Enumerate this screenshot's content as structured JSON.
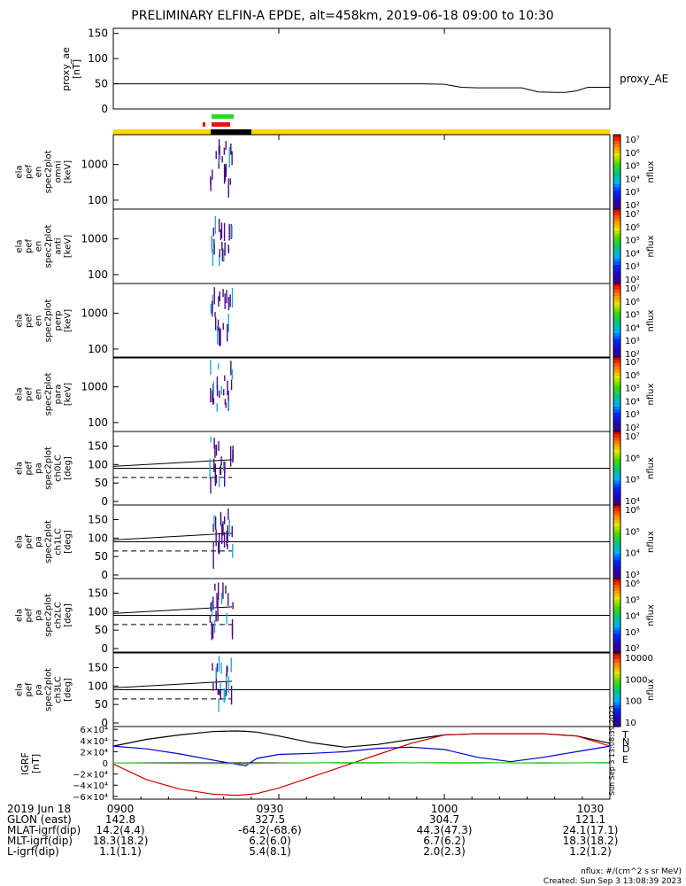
{
  "title": "PRELIMINARY ELFIN-A EPDE, alt=458km, 2019-06-18 09:00 to 10:30",
  "colors": {
    "status_yellow": "#ffd700",
    "status_black": "#000000",
    "bar_green": "#22dd22",
    "bar_red": "#ee1111",
    "north": "#cc0000",
    "east": "#22cc22",
    "down": "#0000cc",
    "total": "#000000"
  },
  "proxy_ae": {
    "ylabel_lines": [
      "proxy_ae",
      "[nT]"
    ],
    "ticks": [
      "150",
      "100",
      "50",
      "0"
    ],
    "legend": "proxy_AE",
    "chart_data": {
      "type": "line",
      "ylim": [
        0,
        160
      ],
      "x_min": [
        0,
        8,
        16,
        24,
        32,
        40,
        48,
        56,
        60,
        63,
        66,
        70,
        74,
        77,
        80,
        82,
        84,
        86,
        88,
        90
      ],
      "values": [
        50,
        50,
        50,
        50,
        50,
        50,
        50,
        50,
        49,
        43,
        42,
        42,
        42,
        34,
        33,
        33,
        36,
        43,
        43,
        43
      ]
    }
  },
  "spec_panels": [
    {
      "ylabel_lines": [
        "ela",
        "pef",
        "en",
        "spec2plot",
        "omni",
        "[keV]"
      ],
      "ticks": [
        "1000",
        "100"
      ],
      "cbar_ticks": [
        "10⁷",
        "10⁶",
        "10⁵",
        "10⁴",
        "10³",
        "10²"
      ],
      "cbar_label": "nflux"
    },
    {
      "ylabel_lines": [
        "ela",
        "pef",
        "en",
        "spec2plot",
        "anti",
        "[keV]"
      ],
      "ticks": [
        "1000",
        "100"
      ],
      "cbar_ticks": [
        "10⁷",
        "10⁶",
        "10⁵",
        "10⁴",
        "10³",
        "10²"
      ],
      "cbar_label": "nflux"
    },
    {
      "ylabel_lines": [
        "ela",
        "pef",
        "en",
        "spec2plot",
        "perp",
        "[keV]"
      ],
      "ticks": [
        "1000",
        "100"
      ],
      "cbar_ticks": [
        "10⁷",
        "10⁶",
        "10⁵",
        "10⁴",
        "10³",
        "10²"
      ],
      "cbar_label": "nflux"
    },
    {
      "ylabel_lines": [
        "ela",
        "pef",
        "en",
        "spec2plot",
        "para",
        "[keV]"
      ],
      "ticks": [
        "1000",
        "100"
      ],
      "cbar_ticks": [
        "10⁷",
        "10⁶",
        "10⁵",
        "10⁴",
        "10³",
        "10²"
      ],
      "cbar_label": "nflux"
    }
  ],
  "pa_panels": [
    {
      "ylabel_lines": [
        "ela",
        "pef",
        "pa",
        "spec2plot",
        "ch0LC",
        "[deg]"
      ],
      "ticks": [
        "150",
        "100",
        "50",
        "0"
      ],
      "cbar_ticks": [
        "10⁷",
        "10⁶",
        "10⁵",
        "10⁴"
      ],
      "cbar_label": "nflux"
    },
    {
      "ylabel_lines": [
        "ela",
        "pef",
        "pa",
        "spec2plot",
        "ch1LC",
        "[deg]"
      ],
      "ticks": [
        "150",
        "100",
        "50",
        "0"
      ],
      "cbar_ticks": [
        "10⁶",
        "10⁵",
        "10⁴",
        "10³"
      ],
      "cbar_label": "nflux"
    },
    {
      "ylabel_lines": [
        "ela",
        "pef",
        "pa",
        "spec2plot",
        "ch2LC",
        "[deg]"
      ],
      "ticks": [
        "150",
        "100",
        "50",
        "0"
      ],
      "cbar_ticks": [
        "10⁶",
        "10⁵",
        "10⁴",
        "10³",
        "10²"
      ],
      "cbar_label": "nflux"
    },
    {
      "ylabel_lines": [
        "ela",
        "pef",
        "pa",
        "spec2plot",
        "ch3LC",
        "[deg]"
      ],
      "ticks": [
        "150",
        "100",
        "50",
        "0"
      ],
      "cbar_ticks": [
        "10000",
        "1000",
        "100",
        "10"
      ],
      "cbar_label": "nflux"
    }
  ],
  "igrf": {
    "ylabel_lines": [
      "IGRF",
      "[nT]"
    ],
    "ticks": [
      "6×10⁴",
      "4×10⁴",
      "2×10⁴",
      "0",
      "−2×10⁴",
      "−4×10⁴",
      "−6×10⁴"
    ],
    "legend": [
      "T",
      "N",
      "D",
      "E"
    ],
    "side_text": "Sun Sep  3 13:08:39 2023",
    "chart_data": {
      "type": "line",
      "ylim": [
        -65000,
        65000
      ],
      "x_min": [
        0,
        6,
        12,
        18,
        22,
        24,
        26,
        30,
        36,
        42,
        48,
        54,
        60,
        66,
        72,
        78,
        84,
        90
      ],
      "series": [
        {
          "name": "T",
          "values": [
            30000,
            42000,
            50000,
            56000,
            57000,
            56500,
            55000,
            48000,
            36000,
            28000,
            33000,
            42000,
            50000,
            52000,
            52000,
            52000,
            48000,
            35000
          ]
        },
        {
          "name": "N",
          "values": [
            -2000,
            -30000,
            -47000,
            -56000,
            -58000,
            -57000,
            -55000,
            -45000,
            -25000,
            -5000,
            15000,
            35000,
            50000,
            52000,
            52000,
            52000,
            48000,
            30000
          ]
        },
        {
          "name": "D",
          "values": [
            30000,
            25000,
            16000,
            5000,
            -2000,
            -5000,
            8000,
            15000,
            17000,
            20000,
            26000,
            28000,
            24000,
            10000,
            2000,
            10000,
            20000,
            30000
          ]
        },
        {
          "name": "E",
          "values": [
            0,
            -500,
            -1000,
            -1000,
            -1500,
            -1500,
            -1000,
            -500,
            0,
            500,
            500,
            0,
            500,
            500,
            0,
            -500,
            0,
            500
          ]
        }
      ]
    }
  },
  "xaxis": {
    "tick_labels": [
      "0900",
      "0930",
      "1000",
      "1030"
    ],
    "rows": [
      {
        "label": "2019 Jun 18",
        "values": [
          "",
          "",
          "",
          ""
        ]
      },
      {
        "label": "GLON (east)",
        "values": [
          "142.8",
          "327.5",
          "304.7",
          "121.1"
        ]
      },
      {
        "label": "MLAT-igrf(dip)",
        "values": [
          "14.2(4.4)",
          "-64.2(-68.6)",
          "44.3(47.3)",
          "24.1(17.1)"
        ]
      },
      {
        "label": "MLT-igrf(dip)",
        "values": [
          "18.3(18.2)",
          "6.2(6.0)",
          "6.7(6.2)",
          "18.3(18.2)"
        ]
      },
      {
        "label": "L-igrf(dip)",
        "values": [
          "1.1(1.1)",
          "5.4(8.1)",
          "2.0(2.3)",
          "1.2(1.2)"
        ]
      }
    ]
  },
  "footer": {
    "units": "nflux: #/(cm^2 s sr MeV)",
    "created": "Created: Sun Sep  3 13:08:39 2023"
  }
}
